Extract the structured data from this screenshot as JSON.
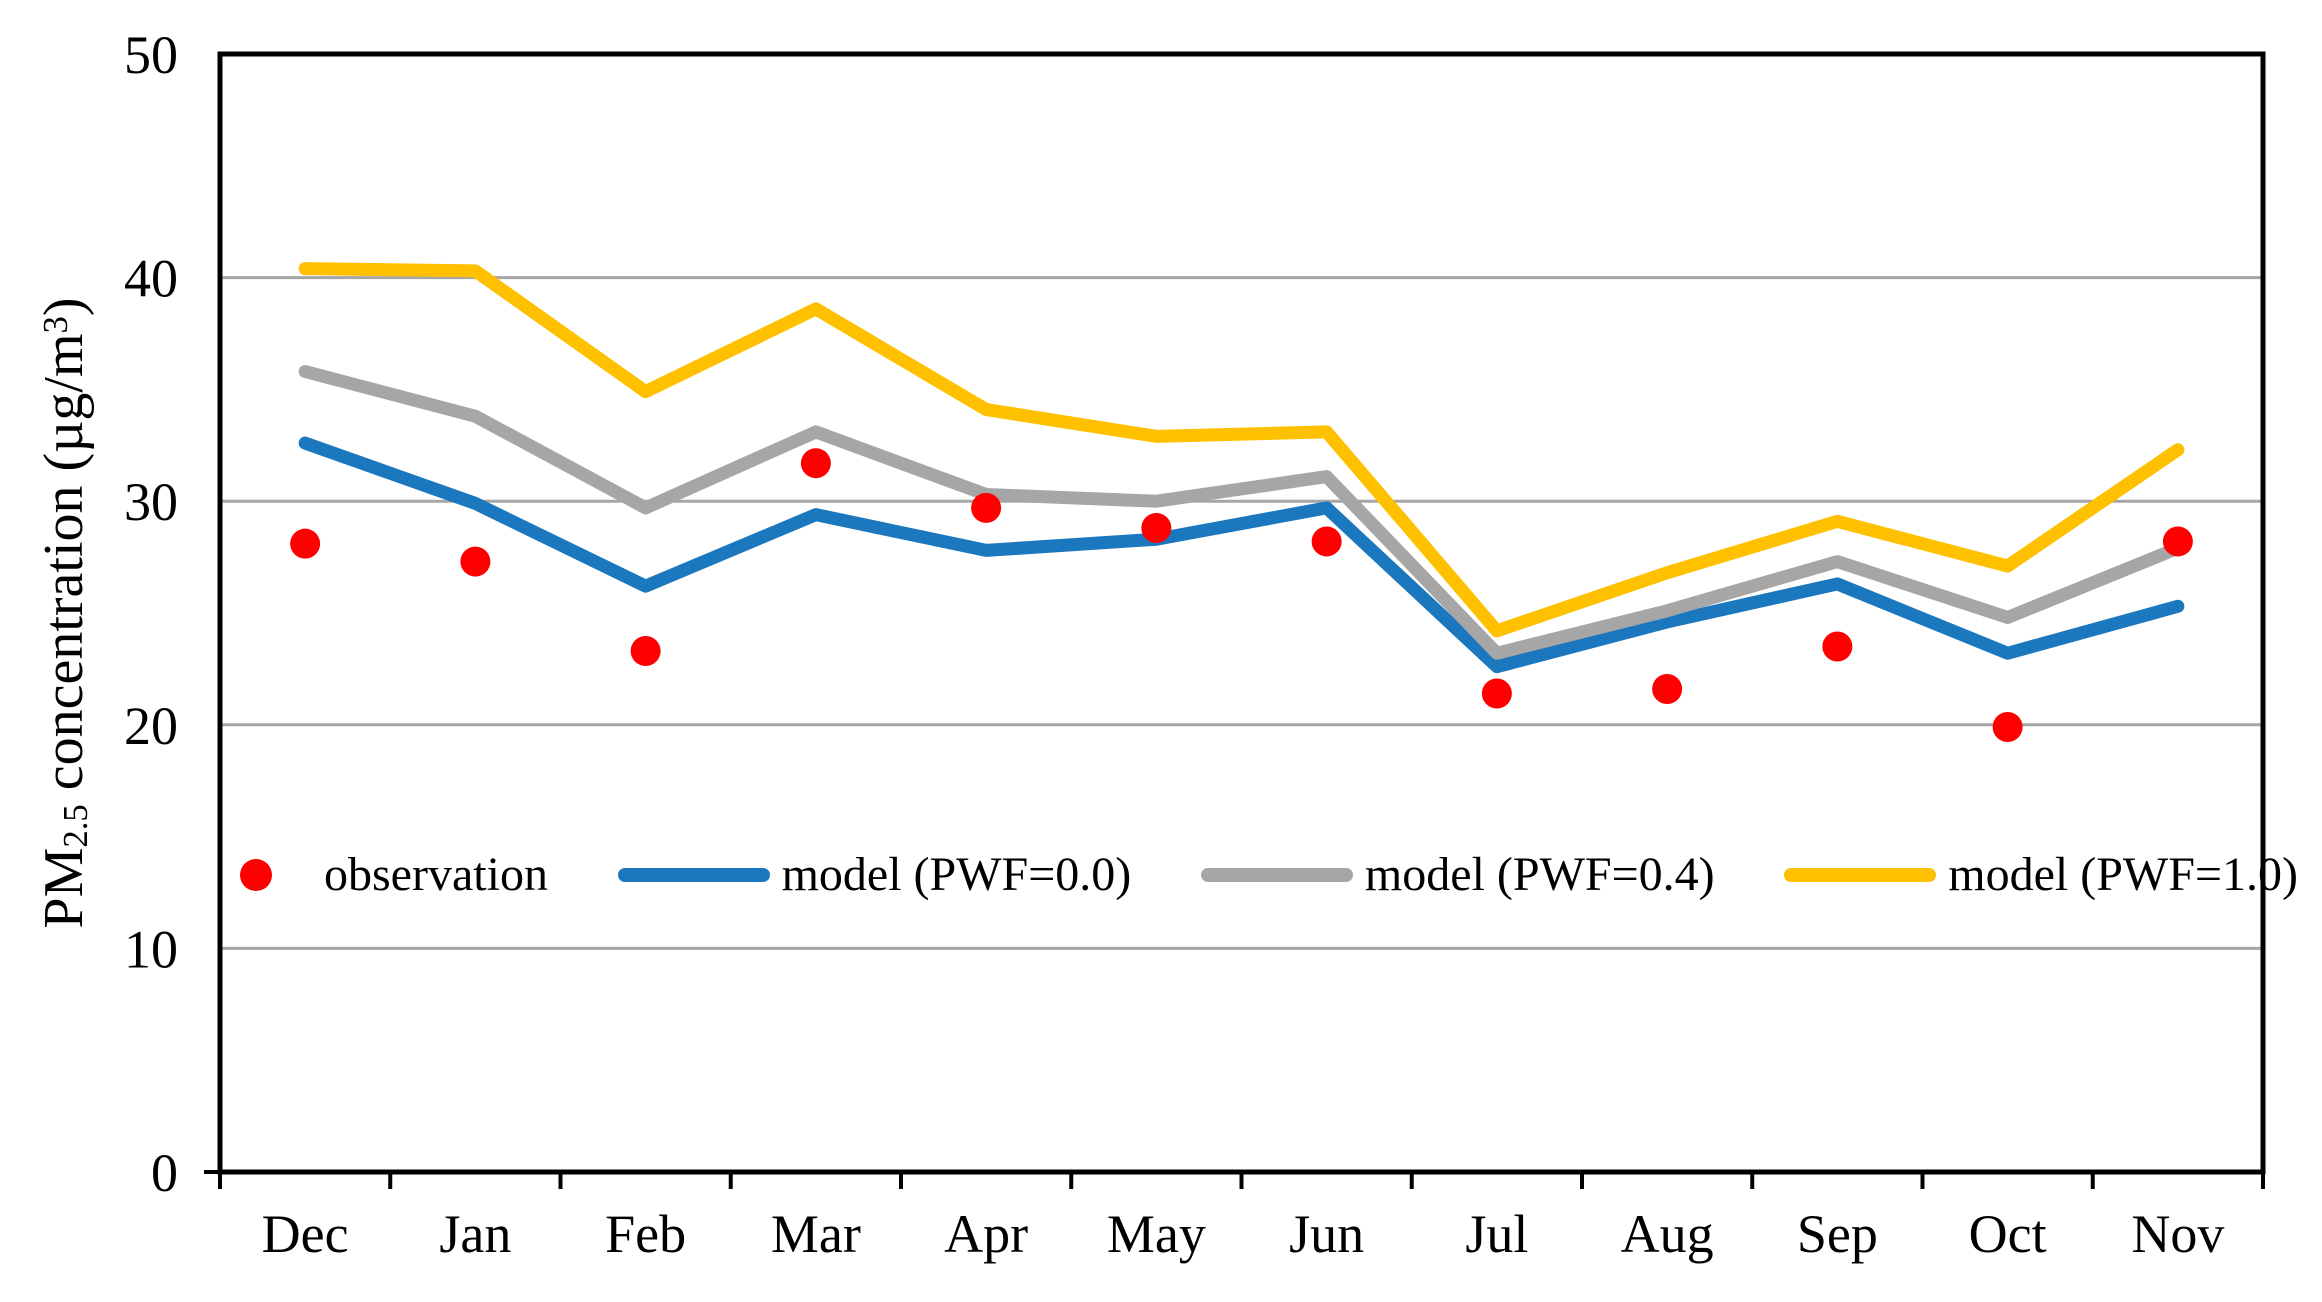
{
  "y_axis": {
    "title_prefix": "PM",
    "title_subscript": "2.5",
    "title_middle": " concentration (µg/m",
    "title_superscript": "3",
    "title_suffix": ")"
  },
  "chart_data": {
    "type": "line",
    "title": "",
    "xlabel": "",
    "ylabel": "PM2.5 concentration (µg/m³)",
    "categories": [
      "Dec",
      "Jan",
      "Feb",
      "Mar",
      "Apr",
      "May",
      "Jun",
      "Jul",
      "Aug",
      "Sep",
      "Oct",
      "Nov"
    ],
    "ylim": [
      0,
      50
    ],
    "ytick_step": 10,
    "ytick_labels": [
      "0",
      "10",
      "20",
      "30",
      "40",
      "50"
    ],
    "grid": true,
    "legend_position": "inside-lower-left",
    "series": [
      {
        "name": "observation",
        "marker": "dot",
        "color": "#FF0000",
        "values": [
          28.1,
          27.3,
          23.3,
          31.7,
          29.7,
          28.8,
          28.2,
          21.4,
          21.6,
          23.5,
          19.9,
          28.2
        ]
      },
      {
        "name": "model (PWF=0.0)",
        "marker": "line",
        "color": "#1B77BE",
        "values": [
          32.6,
          29.9,
          26.2,
          29.4,
          27.8,
          28.3,
          29.7,
          22.6,
          24.6,
          26.3,
          23.2,
          25.3
        ]
      },
      {
        "name": "model (PWF=0.4)",
        "marker": "line",
        "color": "#A6A6A6",
        "values": [
          35.8,
          33.8,
          29.7,
          33.1,
          30.3,
          30.0,
          31.1,
          23.2,
          25.1,
          27.3,
          24.8,
          27.9
        ]
      },
      {
        "name": "model (PWF=1.0)",
        "marker": "line",
        "color": "#FFC000",
        "values": [
          40.4,
          40.3,
          34.9,
          38.6,
          34.1,
          32.9,
          33.1,
          24.2,
          26.8,
          29.1,
          27.1,
          32.3
        ]
      }
    ],
    "style": {
      "gridline_color": "#A6A6A6",
      "axis_color": "#000000",
      "line_width": 13,
      "dot_radius": 15
    }
  }
}
